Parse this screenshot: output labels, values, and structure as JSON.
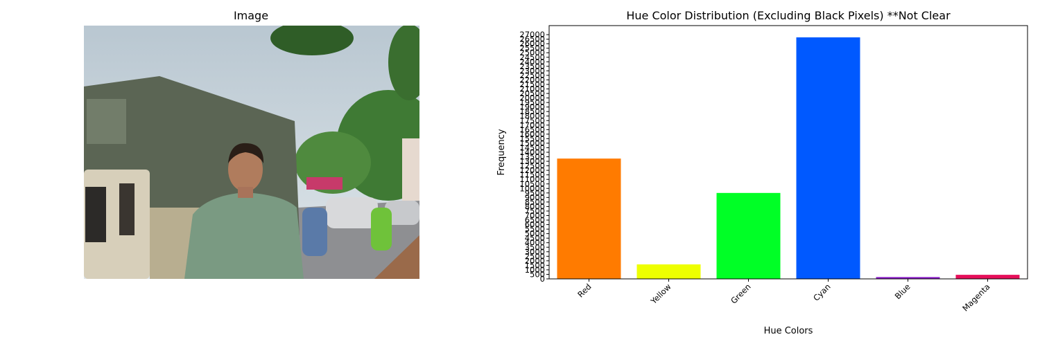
{
  "image_panel": {
    "title": "Image",
    "photo_description_icon": "photo-street-scene"
  },
  "chart_data": {
    "type": "bar",
    "title": "Hue Color Distribution (Excluding Black Pixels) **Not Clear",
    "xlabel": "Hue Colors",
    "ylabel": "Frequency",
    "categories": [
      "Red",
      "Yellow",
      "Green",
      "Cyan",
      "Blue",
      "Magenta"
    ],
    "values": [
      13300,
      1600,
      9500,
      26700,
      200,
      450
    ],
    "colors": [
      "#ff7b00",
      "#eeff00",
      "#00ff26",
      "#0059ff",
      "#8a1ac9",
      "#e60f5a"
    ],
    "ylim": [
      0,
      28000
    ],
    "yticks": [
      0,
      500,
      1000,
      1500,
      2000,
      2500,
      3000,
      3500,
      4000,
      4500,
      5000,
      5500,
      6000,
      6500,
      7000,
      7500,
      8000,
      8500,
      9000,
      9500,
      10000,
      10500,
      11000,
      11500,
      12000,
      12500,
      13000,
      13500,
      14000,
      14500,
      15000,
      15500,
      16000,
      16500,
      17000,
      17500,
      18000,
      18500,
      19000,
      19500,
      20000,
      20500,
      21000,
      21500,
      22000,
      22500,
      23000,
      23500,
      24000,
      24500,
      25000,
      25500,
      26000,
      26500,
      27000
    ],
    "grid": false,
    "legend": "none"
  }
}
